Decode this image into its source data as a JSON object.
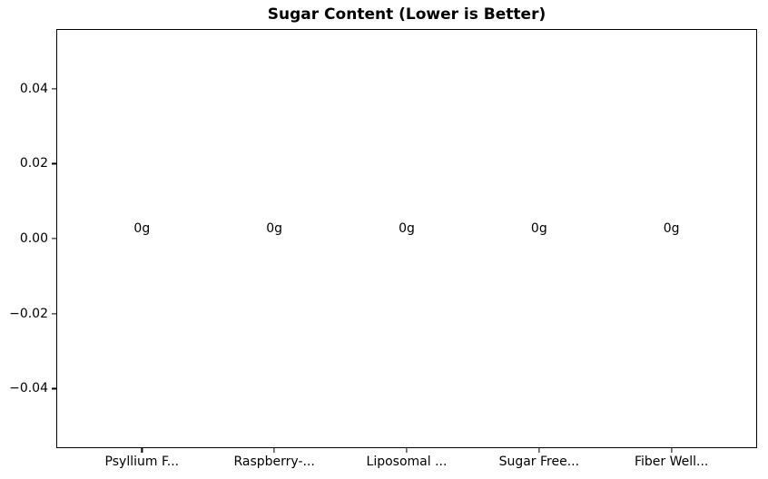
{
  "figure": {
    "background": "#ffffff",
    "frame_color": "#000000",
    "text_color": "#000000"
  },
  "chart_data": {
    "type": "bar",
    "title": "Sugar Content (Lower is Better)",
    "categories": [
      "Psyllium F...",
      "Raspberry-...",
      "Liposomal ...",
      "Sugar Free...",
      "Fiber Well..."
    ],
    "x": [
      0,
      1,
      2,
      3,
      4
    ],
    "values": [
      0,
      0,
      0,
      0,
      0
    ],
    "bar_labels": [
      "0g",
      "0g",
      "0g",
      "0g",
      "0g"
    ],
    "bar_width": 0.8,
    "xlim": [
      -0.64,
      4.64
    ],
    "ylim": [
      -0.05565,
      0.05565
    ],
    "yticks": [
      0.04,
      0.02,
      0,
      -0.02,
      -0.04
    ],
    "ytick_labels": [
      "0.04",
      "0.02",
      "0.00",
      "−0.02",
      "−0.04"
    ],
    "xlabel": "",
    "ylabel": "",
    "grid": false,
    "legend_position": "none"
  }
}
